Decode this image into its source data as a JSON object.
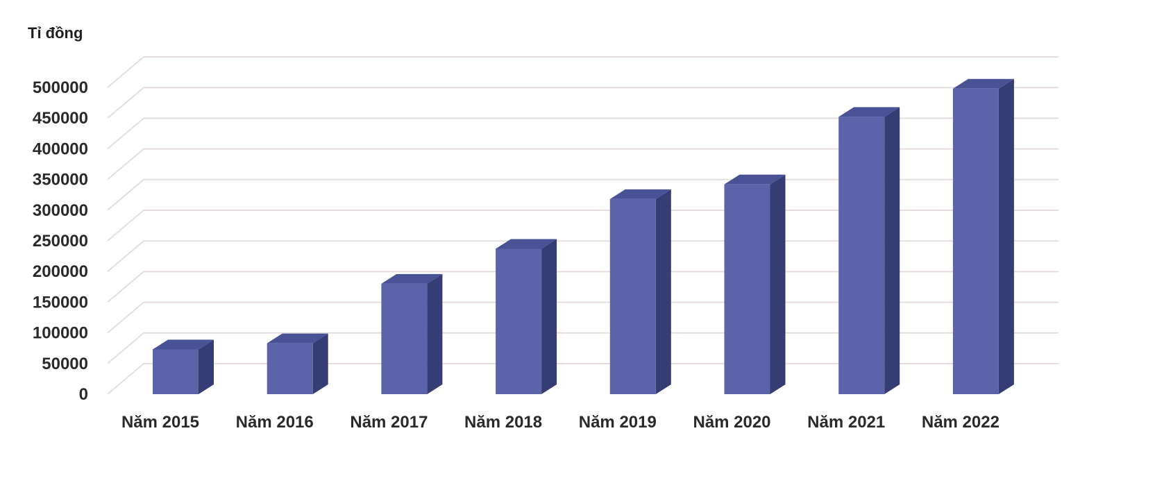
{
  "chart_data": {
    "type": "bar",
    "style": "3d-column",
    "ylabel": "Tỉ đồng",
    "xlabel": "",
    "ylim": [
      0,
      500000
    ],
    "ytick_step": 50000,
    "yticks": [
      "0",
      "50000",
      "100000",
      "150000",
      "200000",
      "250000",
      "300000",
      "350000",
      "400000",
      "450000",
      "500000"
    ],
    "grid": true,
    "categories": [
      "Năm 2015",
      "Năm 2016",
      "Năm 2017",
      "Năm 2018",
      "Năm 2019",
      "Năm 2020",
      "Năm 2021",
      "Năm 2022"
    ],
    "values": [
      73000,
      83000,
      180000,
      237000,
      318000,
      342000,
      452000,
      498000
    ],
    "colors": {
      "bar_front": "#5b64a8",
      "bar_side": "#363d75",
      "bar_top": "#4a5296",
      "grid": "#e6dede"
    }
  }
}
